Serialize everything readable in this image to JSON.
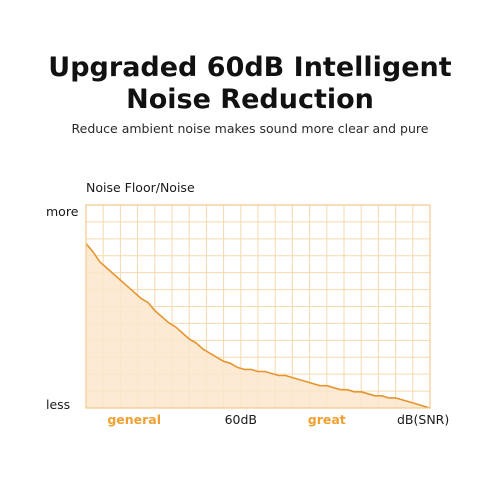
{
  "header": {
    "title_line1": "Upgraded 60dB Intelligent",
    "title_line2": "Noise Reduction",
    "subtitle": "Reduce ambient noise makes sound more clear and pure"
  },
  "colors": {
    "accent": "#f0a033",
    "grid": "#f6d9ae",
    "fill": "#fde6cc",
    "line": "#e6952e",
    "frame": "#f3c88d"
  },
  "chart_data": {
    "type": "area",
    "title": "",
    "ylabel": "Noise Floor/Noise",
    "xlabel": "dB(SNR)",
    "y_tick_labels": {
      "top": "more",
      "bottom": "less"
    },
    "x_tick_labels": [
      {
        "label": "general",
        "x": 0.14,
        "accent": true
      },
      {
        "label": "60dB",
        "x": 0.45,
        "accent": false
      },
      {
        "label": "great",
        "x": 0.7,
        "accent": true
      },
      {
        "label": "dB(SNR)",
        "x": 0.98,
        "accent": false
      }
    ],
    "xlim": [
      0,
      1
    ],
    "ylim": [
      0,
      1
    ],
    "grid": true,
    "grid_divisions": {
      "x": 20,
      "y": 12
    },
    "series": [
      {
        "x": [
          0.0,
          0.02,
          0.04,
          0.06,
          0.08,
          0.1,
          0.12,
          0.14,
          0.16,
          0.18,
          0.2,
          0.22,
          0.24,
          0.26,
          0.28,
          0.3,
          0.32,
          0.34,
          0.36,
          0.38,
          0.4,
          0.42,
          0.44,
          0.46,
          0.48,
          0.5,
          0.52,
          0.54,
          0.56,
          0.58,
          0.6,
          0.62,
          0.64,
          0.66,
          0.68,
          0.7,
          0.72,
          0.74,
          0.76,
          0.78,
          0.8,
          0.82,
          0.84,
          0.86,
          0.88,
          0.9,
          0.92,
          0.94,
          0.96,
          0.98,
          1.0
        ],
        "values": [
          0.81,
          0.77,
          0.72,
          0.69,
          0.66,
          0.63,
          0.6,
          0.57,
          0.54,
          0.52,
          0.48,
          0.45,
          0.42,
          0.4,
          0.37,
          0.34,
          0.32,
          0.29,
          0.27,
          0.25,
          0.23,
          0.22,
          0.2,
          0.19,
          0.19,
          0.18,
          0.18,
          0.17,
          0.16,
          0.16,
          0.15,
          0.14,
          0.13,
          0.12,
          0.11,
          0.11,
          0.1,
          0.09,
          0.09,
          0.08,
          0.08,
          0.07,
          0.06,
          0.06,
          0.05,
          0.05,
          0.04,
          0.03,
          0.02,
          0.01,
          0.0
        ]
      }
    ]
  }
}
